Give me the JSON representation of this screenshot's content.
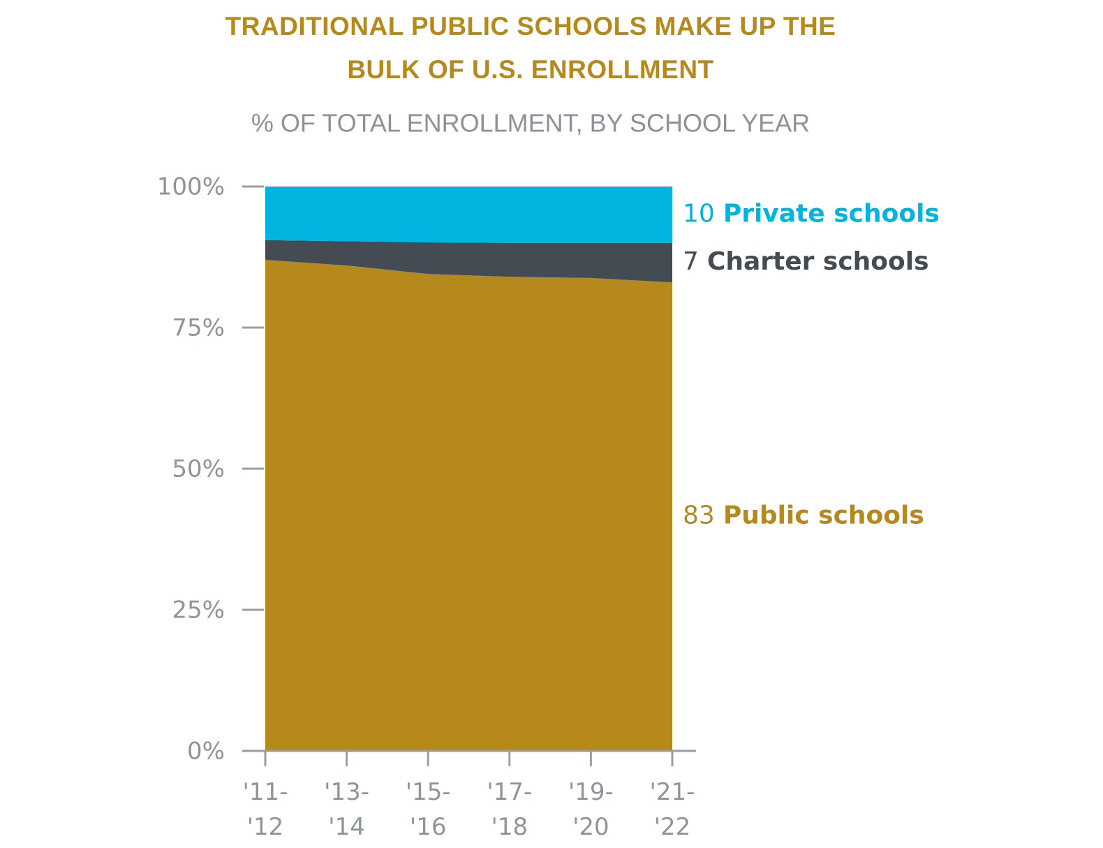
{
  "chart_data": {
    "type": "stacked-area",
    "title": [
      "TRADITIONAL PUBLIC SCHOOLS MAKE UP THE",
      "BULK OF U.S. ENROLLMENT"
    ],
    "subtitle": "% OF TOTAL ENROLLMENT, BY SCHOOL YEAR",
    "categories": [
      "'11-'12",
      "'13-'14",
      "'15-'16",
      "'17-'18",
      "'19-'20",
      "'21-'22"
    ],
    "series": [
      {
        "name": "Public schools",
        "color": "#b5891c",
        "values": [
          87,
          86,
          84.5,
          84,
          83.8,
          83
        ]
      },
      {
        "name": "Charter schools",
        "color": "#454b53",
        "values": [
          3.5,
          4.3,
          5.6,
          6,
          6.2,
          7
        ]
      },
      {
        "name": "Private schools",
        "color": "#00b4e0",
        "values": [
          9.5,
          9.7,
          9.9,
          10,
          10,
          10
        ]
      }
    ],
    "ylim": [
      0,
      100
    ],
    "yticks": [
      {
        "value": 0,
        "label": "0%"
      },
      {
        "value": 25,
        "label": "25%"
      },
      {
        "value": 50,
        "label": "50%"
      },
      {
        "value": 75,
        "label": "75%"
      },
      {
        "value": 100,
        "label": "100%"
      }
    ]
  }
}
